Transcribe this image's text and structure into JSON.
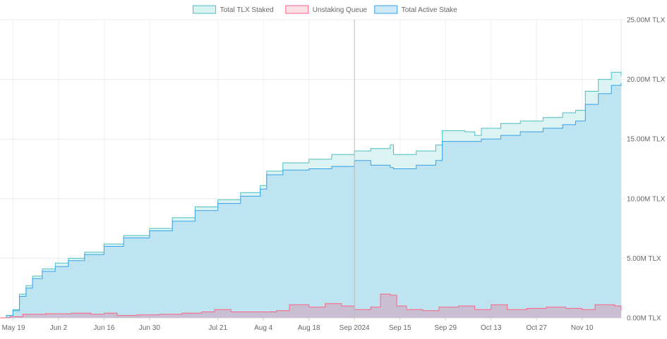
{
  "chart_data": {
    "type": "area",
    "legend_position": "top-center",
    "grid": true,
    "x_domain": [
      "2024-05-15",
      "2024-11-22"
    ],
    "y_axis": {
      "position": "right",
      "ylim": [
        0,
        25000000
      ],
      "ticks": [
        {
          "value": 0,
          "label": "0.00M TLX"
        },
        {
          "value": 5000000,
          "label": "5.00M TLX"
        },
        {
          "value": 10000000,
          "label": "10.00M TLX"
        },
        {
          "value": 15000000,
          "label": "15.00M TLX"
        },
        {
          "value": 20000000,
          "label": "20.00M TLX"
        },
        {
          "value": 25000000,
          "label": "25.00M TLX"
        }
      ]
    },
    "x_ticks": [
      {
        "date": "2024-05-19",
        "label": "May 19"
      },
      {
        "date": "2024-06-02",
        "label": "Jun 2"
      },
      {
        "date": "2024-06-16",
        "label": "Jun 16"
      },
      {
        "date": "2024-06-30",
        "label": "Jun 30"
      },
      {
        "date": "2024-07-21",
        "label": "Jul 21"
      },
      {
        "date": "2024-08-04",
        "label": "Aug 4"
      },
      {
        "date": "2024-08-18",
        "label": "Aug 18"
      },
      {
        "date": "2024-09-01",
        "label": "Sep 2024"
      },
      {
        "date": "2024-09-15",
        "label": "Sep 15"
      },
      {
        "date": "2024-09-29",
        "label": "Sep 29"
      },
      {
        "date": "2024-10-13",
        "label": "Oct 13"
      },
      {
        "date": "2024-10-27",
        "label": "Oct 27"
      },
      {
        "date": "2024-11-10",
        "label": "Nov 10"
      }
    ],
    "series": [
      {
        "name": "Total TLX Staked",
        "fill": "#d9f2f2",
        "stroke": "#4bc0c0",
        "points": [
          [
            "2024-05-15",
            0
          ],
          [
            "2024-05-17",
            200000
          ],
          [
            "2024-05-19",
            700000
          ],
          [
            "2024-05-21",
            2000000
          ],
          [
            "2024-05-23",
            2700000
          ],
          [
            "2024-05-25",
            3500000
          ],
          [
            "2024-05-28",
            4100000
          ],
          [
            "2024-06-01",
            4600000
          ],
          [
            "2024-06-05",
            5000000
          ],
          [
            "2024-06-10",
            5500000
          ],
          [
            "2024-06-16",
            6200000
          ],
          [
            "2024-06-22",
            6900000
          ],
          [
            "2024-06-30",
            7500000
          ],
          [
            "2024-07-07",
            8400000
          ],
          [
            "2024-07-14",
            9300000
          ],
          [
            "2024-07-21",
            9900000
          ],
          [
            "2024-07-28",
            10500000
          ],
          [
            "2024-08-03",
            11100000
          ],
          [
            "2024-08-05",
            12300000
          ],
          [
            "2024-08-10",
            13000000
          ],
          [
            "2024-08-18",
            13300000
          ],
          [
            "2024-08-25",
            13700000
          ],
          [
            "2024-09-01",
            14000000
          ],
          [
            "2024-09-06",
            14200000
          ],
          [
            "2024-09-12",
            14500000
          ],
          [
            "2024-09-13",
            13700000
          ],
          [
            "2024-09-20",
            14000000
          ],
          [
            "2024-09-26",
            14500000
          ],
          [
            "2024-09-28",
            15700000
          ],
          [
            "2024-10-05",
            15600000
          ],
          [
            "2024-10-08",
            15300000
          ],
          [
            "2024-10-10",
            15900000
          ],
          [
            "2024-10-16",
            16300000
          ],
          [
            "2024-10-22",
            16500000
          ],
          [
            "2024-10-29",
            16800000
          ],
          [
            "2024-11-04",
            17200000
          ],
          [
            "2024-11-08",
            17400000
          ],
          [
            "2024-11-11",
            19000000
          ],
          [
            "2024-11-15",
            20000000
          ],
          [
            "2024-11-19",
            20600000
          ],
          [
            "2024-11-22",
            20300000
          ]
        ]
      },
      {
        "name": "Total Active Stake",
        "fill": "#bde3f0",
        "stroke": "#36a2eb",
        "points": [
          [
            "2024-05-15",
            0
          ],
          [
            "2024-05-17",
            200000
          ],
          [
            "2024-05-19",
            600000
          ],
          [
            "2024-05-21",
            1800000
          ],
          [
            "2024-05-23",
            2500000
          ],
          [
            "2024-05-25",
            3300000
          ],
          [
            "2024-05-28",
            3900000
          ],
          [
            "2024-06-01",
            4300000
          ],
          [
            "2024-06-05",
            4800000
          ],
          [
            "2024-06-10",
            5300000
          ],
          [
            "2024-06-16",
            6000000
          ],
          [
            "2024-06-22",
            6700000
          ],
          [
            "2024-06-30",
            7300000
          ],
          [
            "2024-07-07",
            8100000
          ],
          [
            "2024-07-14",
            9000000
          ],
          [
            "2024-07-21",
            9600000
          ],
          [
            "2024-07-28",
            10200000
          ],
          [
            "2024-08-03",
            10800000
          ],
          [
            "2024-08-05",
            12000000
          ],
          [
            "2024-08-10",
            12400000
          ],
          [
            "2024-08-18",
            12500000
          ],
          [
            "2024-08-25",
            12700000
          ],
          [
            "2024-09-01",
            13200000
          ],
          [
            "2024-09-06",
            12800000
          ],
          [
            "2024-09-12",
            12600000
          ],
          [
            "2024-09-13",
            12500000
          ],
          [
            "2024-09-20",
            12800000
          ],
          [
            "2024-09-26",
            13200000
          ],
          [
            "2024-09-28",
            14800000
          ],
          [
            "2024-10-05",
            14800000
          ],
          [
            "2024-10-08",
            14800000
          ],
          [
            "2024-10-10",
            15000000
          ],
          [
            "2024-10-16",
            15300000
          ],
          [
            "2024-10-22",
            15600000
          ],
          [
            "2024-10-29",
            15900000
          ],
          [
            "2024-11-04",
            16200000
          ],
          [
            "2024-11-08",
            16500000
          ],
          [
            "2024-11-11",
            17900000
          ],
          [
            "2024-11-15",
            18800000
          ],
          [
            "2024-11-19",
            19500000
          ],
          [
            "2024-11-22",
            19700000
          ]
        ]
      },
      {
        "name": "Unstaking Queue",
        "fill": "#c9bdd0",
        "stroke": "#ff6384",
        "points": [
          [
            "2024-05-15",
            0
          ],
          [
            "2024-05-18",
            100000
          ],
          [
            "2024-05-22",
            300000
          ],
          [
            "2024-05-29",
            350000
          ],
          [
            "2024-06-06",
            400000
          ],
          [
            "2024-06-12",
            300000
          ],
          [
            "2024-06-16",
            400000
          ],
          [
            "2024-06-20",
            200000
          ],
          [
            "2024-06-26",
            250000
          ],
          [
            "2024-07-03",
            300000
          ],
          [
            "2024-07-10",
            400000
          ],
          [
            "2024-07-16",
            500000
          ],
          [
            "2024-07-20",
            700000
          ],
          [
            "2024-07-25",
            500000
          ],
          [
            "2024-08-01",
            500000
          ],
          [
            "2024-08-08",
            600000
          ],
          [
            "2024-08-12",
            1100000
          ],
          [
            "2024-08-18",
            900000
          ],
          [
            "2024-08-23",
            1200000
          ],
          [
            "2024-08-28",
            1000000
          ],
          [
            "2024-09-01",
            700000
          ],
          [
            "2024-09-06",
            900000
          ],
          [
            "2024-09-09",
            2000000
          ],
          [
            "2024-09-12",
            1900000
          ],
          [
            "2024-09-14",
            1000000
          ],
          [
            "2024-09-17",
            700000
          ],
          [
            "2024-09-22",
            600000
          ],
          [
            "2024-09-27",
            900000
          ],
          [
            "2024-10-03",
            1000000
          ],
          [
            "2024-10-08",
            700000
          ],
          [
            "2024-10-13",
            1100000
          ],
          [
            "2024-10-18",
            700000
          ],
          [
            "2024-10-24",
            800000
          ],
          [
            "2024-10-30",
            900000
          ],
          [
            "2024-11-05",
            800000
          ],
          [
            "2024-11-10",
            700000
          ],
          [
            "2024-11-14",
            1100000
          ],
          [
            "2024-11-20",
            1000000
          ],
          [
            "2024-11-22",
            600000
          ]
        ]
      }
    ]
  },
  "legend": {
    "items": [
      {
        "label": "Total TLX Staked",
        "fill": "#d9f2f2",
        "stroke": "#4bc0c0"
      },
      {
        "label": "Unstaking Queue",
        "fill": "#fbe0e6",
        "stroke": "#ff6384"
      },
      {
        "label": "Total Active Stake",
        "fill": "#cfe8f7",
        "stroke": "#36a2eb"
      }
    ]
  },
  "crosshair_date": "2024-09-01"
}
